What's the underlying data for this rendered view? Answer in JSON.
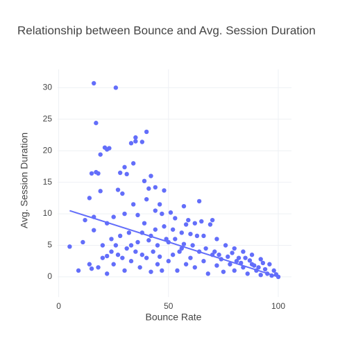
{
  "chart_data": {
    "type": "scatter",
    "title": "Relationship between Bounce and Avg. Session Duration",
    "x_label": "Bounce Rate",
    "y_label": "Avg. Session Duration",
    "xlim": [
      -0.5,
      106
    ],
    "xticks": [
      0,
      50,
      100
    ],
    "ylim": [
      -3.2,
      32.9
    ],
    "yticks": [
      0,
      5,
      10,
      15,
      20,
      25,
      30
    ],
    "grid": true,
    "series": [
      {
        "mode": "markers",
        "color": "#636efa",
        "x": [
          16,
          26,
          17,
          40,
          35,
          33,
          38,
          35,
          21,
          23,
          22,
          19,
          34,
          28,
          30,
          15,
          18,
          17,
          31,
          42,
          39,
          27,
          19,
          14,
          29,
          44,
          48,
          41,
          64,
          46,
          40,
          34,
          57,
          51,
          16,
          22,
          25,
          30,
          36,
          44,
          47,
          53,
          59,
          62,
          65,
          69,
          70,
          12,
          16,
          20,
          24,
          28,
          32,
          38,
          42,
          48,
          52,
          56,
          60,
          66,
          72,
          76,
          80,
          84,
          88,
          92,
          96,
          98,
          100,
          5,
          9,
          11,
          14,
          15,
          18,
          20,
          22,
          25,
          27,
          30,
          33,
          35,
          37,
          40,
          42,
          45,
          47,
          50,
          52,
          54,
          56,
          58,
          60,
          62,
          64,
          66,
          68,
          70,
          72,
          74,
          75,
          78,
          80,
          82,
          84,
          86,
          88,
          90,
          92,
          94,
          95,
          97,
          99,
          50,
          53,
          55,
          57,
          61,
          63,
          67,
          71,
          73,
          77,
          79,
          81,
          83,
          85,
          87,
          89,
          91,
          93,
          45,
          43,
          38,
          36,
          33,
          31,
          29,
          26,
          24,
          22,
          44,
          49,
          58,
          46,
          41,
          39
        ],
        "values": [
          30.7,
          30,
          24.4,
          23,
          22.1,
          21.2,
          21.4,
          21.5,
          20.5,
          20.4,
          20.2,
          19.4,
          18,
          16.5,
          17.4,
          16.4,
          16.4,
          16.6,
          16.3,
          16,
          15.2,
          13.8,
          13.6,
          12.5,
          13.2,
          14.2,
          13.7,
          14,
          12,
          11.5,
          12.3,
          11.5,
          11.2,
          10.2,
          9.5,
          8.5,
          9.5,
          10,
          9.8,
          10.5,
          10,
          9.3,
          9,
          8.5,
          8.8,
          8.3,
          9,
          9,
          7.4,
          5,
          6,
          6.5,
          7,
          7,
          6.5,
          8,
          7.5,
          7,
          6.8,
          6.5,
          6,
          5,
          4.5,
          4,
          3.5,
          2.8,
          2,
          1,
          0,
          4.8,
          1,
          5.5,
          2,
          1.3,
          1.5,
          3,
          0.5,
          2,
          3.5,
          1,
          2.5,
          4,
          1.5,
          3,
          0.8,
          2,
          1,
          2.5,
          3.5,
          1,
          4.5,
          2,
          3,
          1.5,
          4,
          2.5,
          0.5,
          3.5,
          1.8,
          2.8,
          0.8,
          2,
          1,
          3,
          1.5,
          0.5,
          2,
          1,
          0.3,
          1.2,
          0.5,
          0.2,
          0.4,
          5.5,
          6,
          4,
          5.2,
          5,
          6.5,
          4.5,
          4,
          3.5,
          3.2,
          3.8,
          2.5,
          2.2,
          3,
          2.6,
          1.8,
          1.5,
          2.2,
          5,
          4,
          3.5,
          5.5,
          5,
          4.5,
          3,
          5,
          4,
          3.3,
          7.5,
          6,
          8.3,
          3.2,
          5.8,
          8.5
        ]
      },
      {
        "mode": "lines",
        "color": "#636efa",
        "x": [
          5,
          100
        ],
        "values": [
          10.5,
          0
        ]
      }
    ]
  }
}
